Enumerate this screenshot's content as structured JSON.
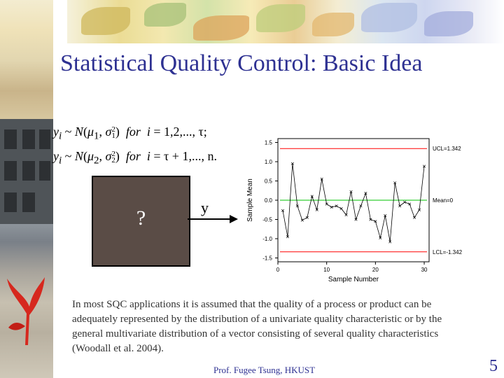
{
  "slide": {
    "title": "Statistical Quality Control: Basic Idea",
    "box_label": "?",
    "output_label": "y",
    "body": "In most SQC applications it is assumed that the quality of a process or product can be adequately represented by the distribution of a univariate quality characteristic or by the general multivariate distribution of a vector consisting of several quality characteristics (Woodall et al. 2004).",
    "footer": "Prof. Fugee Tsung, HKUST",
    "page_number": "5"
  },
  "equations": {
    "eq1": {
      "var": "y",
      "sub_i": "i",
      "tilde": "~",
      "dist": "N",
      "mu": "μ",
      "mu_sub": "1",
      "sigma": "σ",
      "sigma_sup": "2",
      "sigma_sub": "1",
      "cond": "for",
      "index": "i",
      "range": "= 1,2,..., τ;"
    },
    "eq2": {
      "var": "y",
      "sub_i": "i",
      "tilde": "~",
      "dist": "N",
      "mu": "μ",
      "mu_sub": "2",
      "sigma": "σ",
      "sigma_sup": "2",
      "sigma_sub": "2",
      "cond": "for",
      "index": "i",
      "range": "= τ + 1,..., n."
    }
  },
  "chart_data": {
    "type": "line",
    "xlabel": "Sample Number",
    "ylabel": "Sample Mean",
    "xlim": [
      0,
      31
    ],
    "ylim": [
      -1.6,
      1.6
    ],
    "xticks": [
      0,
      10,
      20,
      30
    ],
    "xtick_labels": [
      "0",
      "10",
      "20",
      "30"
    ],
    "yticks": [
      1.5,
      1.0,
      0.5,
      0.0,
      -0.5,
      -1.0,
      -1.5
    ],
    "ytick_labels": [
      "1.5",
      "1.0",
      "0.5",
      "0.0",
      "-0.5",
      "-1.0",
      "-1.5"
    ],
    "x": [
      1,
      2,
      3,
      4,
      5,
      6,
      7,
      8,
      9,
      10,
      11,
      12,
      13,
      14,
      15,
      16,
      17,
      18,
      19,
      20,
      21,
      22,
      23,
      24,
      25,
      26,
      27,
      28,
      29,
      30
    ],
    "values": [
      -0.27,
      -0.95,
      0.95,
      -0.15,
      -0.52,
      -0.45,
      0.1,
      -0.25,
      0.55,
      -0.1,
      -0.18,
      -0.15,
      -0.22,
      -0.38,
      0.22,
      -0.5,
      -0.15,
      0.18,
      -0.5,
      -0.55,
      -0.98,
      -0.4,
      -1.08,
      0.45,
      -0.15,
      -0.05,
      -0.1,
      -0.45,
      -0.25,
      0.88
    ],
    "ucl": 1.342,
    "mean": 0,
    "lcl": -1.342,
    "ucl_label": "UCL=1.342",
    "mean_label": "Mean=0",
    "lcl_label": "LCL=-1.342",
    "colors": {
      "line": "#000000",
      "control": "#ff0000",
      "center": "#00c000"
    }
  }
}
